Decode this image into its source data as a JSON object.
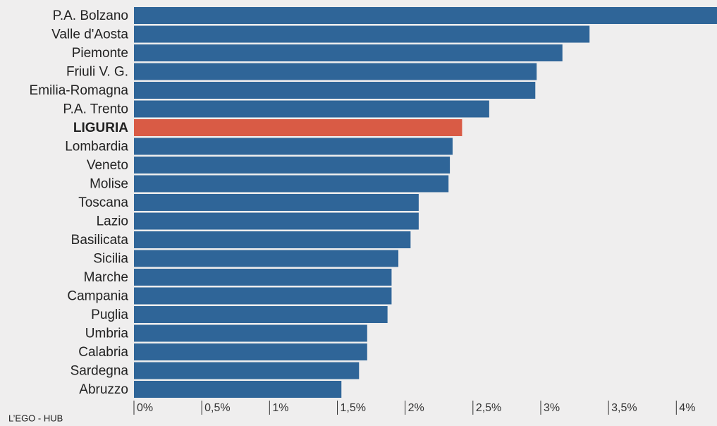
{
  "chart_data": {
    "type": "bar",
    "orientation": "horizontal",
    "categories": [
      "P.A. Bolzano",
      "Valle d'Aosta",
      "Piemonte",
      "Friuli V. G.",
      "Emilia-Romagna",
      "P.A. Trento",
      "LIGURIA",
      "Lombardia",
      "Veneto",
      "Molise",
      "Toscana",
      "Lazio",
      "Basilicata",
      "Sicilia",
      "Marche",
      "Campania",
      "Puglia",
      "Umbria",
      "Calabria",
      "Sardegna",
      "Abruzzo"
    ],
    "values": [
      4.3,
      3.36,
      3.16,
      2.97,
      2.96,
      2.62,
      2.42,
      2.35,
      2.33,
      2.32,
      2.1,
      2.1,
      2.04,
      1.95,
      1.9,
      1.9,
      1.87,
      1.72,
      1.72,
      1.66,
      1.53
    ],
    "colors": [
      "#2f6598",
      "#2f6598",
      "#2f6598",
      "#2f6598",
      "#2f6598",
      "#2f6598",
      "#d95b45",
      "#2f6598",
      "#2f6598",
      "#2f6598",
      "#2f6598",
      "#2f6598",
      "#2f6598",
      "#2f6598",
      "#2f6598",
      "#2f6598",
      "#2f6598",
      "#2f6598",
      "#2f6598",
      "#2f6598",
      "#2f6598"
    ],
    "xlim": [
      0,
      4.3
    ],
    "xticks": [
      {
        "value": 0,
        "label": "0%"
      },
      {
        "value": 0.5,
        "label": "0,5%"
      },
      {
        "value": 1,
        "label": "1%"
      },
      {
        "value": 1.5,
        "label": "1,5%"
      },
      {
        "value": 2,
        "label": "2%"
      },
      {
        "value": 2.5,
        "label": "2,5%"
      },
      {
        "value": 3,
        "label": "3%"
      },
      {
        "value": 3.5,
        "label": "3,5%"
      },
      {
        "value": 4,
        "label": "4%"
      }
    ],
    "source": "L’EGO - HUB"
  }
}
